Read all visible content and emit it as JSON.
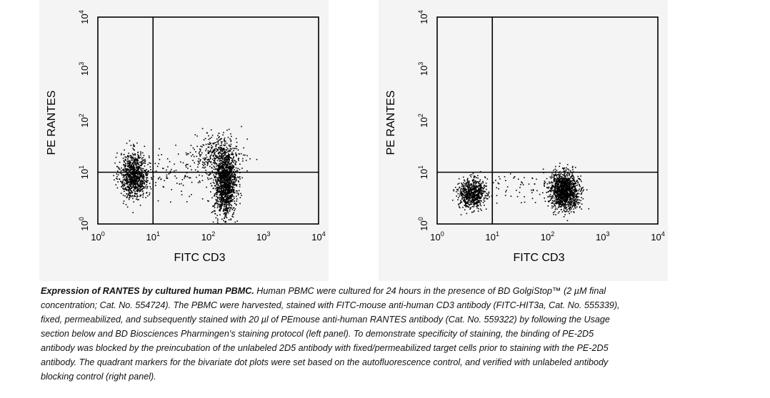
{
  "chart_data": [
    {
      "type": "scatter",
      "panel": "left",
      "xlabel": "FITC CD3",
      "ylabel": "PE RANTES",
      "xscale": "log",
      "yscale": "log",
      "xlim": [
        1,
        10000
      ],
      "ylim": [
        1,
        10000
      ],
      "xticks": [
        {
          "base": "10",
          "exp": "0"
        },
        {
          "base": "10",
          "exp": "1"
        },
        {
          "base": "10",
          "exp": "2"
        },
        {
          "base": "10",
          "exp": "3"
        },
        {
          "base": "10",
          "exp": "4"
        }
      ],
      "yticks": [
        {
          "base": "10",
          "exp": "0"
        },
        {
          "base": "10",
          "exp": "1"
        },
        {
          "base": "10",
          "exp": "2"
        },
        {
          "base": "10",
          "exp": "3"
        },
        {
          "base": "10",
          "exp": "4"
        }
      ],
      "quadrant_markers": {
        "x": 10,
        "y": 10
      },
      "point_color": "#000000",
      "populations": [
        {
          "x_center": 4.5,
          "y_center": 9,
          "x_spread_log": 0.13,
          "y_spread_log": 0.22,
          "count": 900
        },
        {
          "x_center": 200,
          "y_center": 6,
          "x_spread_log": 0.1,
          "y_spread_log": 0.32,
          "count": 1300
        },
        {
          "x_center": 150,
          "y_center": 22,
          "x_spread_log": 0.22,
          "y_spread_log": 0.2,
          "count": 350
        },
        {
          "x_center": 25,
          "y_center": 10,
          "x_spread_log": 0.45,
          "y_spread_log": 0.25,
          "count": 120
        }
      ]
    },
    {
      "type": "scatter",
      "panel": "right",
      "xlabel": "FITC CD3",
      "ylabel": "PE RANTES",
      "xscale": "log",
      "yscale": "log",
      "xlim": [
        1,
        10000
      ],
      "ylim": [
        1,
        10000
      ],
      "xticks": [
        {
          "base": "10",
          "exp": "0"
        },
        {
          "base": "10",
          "exp": "1"
        },
        {
          "base": "10",
          "exp": "2"
        },
        {
          "base": "10",
          "exp": "3"
        },
        {
          "base": "10",
          "exp": "4"
        }
      ],
      "yticks": [
        {
          "base": "10",
          "exp": "0"
        },
        {
          "base": "10",
          "exp": "1"
        },
        {
          "base": "10",
          "exp": "2"
        },
        {
          "base": "10",
          "exp": "3"
        },
        {
          "base": "10",
          "exp": "4"
        }
      ],
      "quadrant_markers": {
        "x": 10,
        "y": 10
      },
      "point_color": "#000000",
      "populations": [
        {
          "x_center": 4.2,
          "y_center": 4,
          "x_spread_log": 0.12,
          "y_spread_log": 0.14,
          "count": 650
        },
        {
          "x_center": 200,
          "y_center": 4.5,
          "x_spread_log": 0.13,
          "y_spread_log": 0.17,
          "count": 1300
        },
        {
          "x_center": 30,
          "y_center": 5,
          "x_spread_log": 0.4,
          "y_spread_log": 0.15,
          "count": 70
        }
      ]
    }
  ],
  "caption": {
    "title": "Expression of RANTES by cultured human PBMC.",
    "body": " Human PBMC were cultured for 24 hours in the presence of BD GolgiStop™ (2 µM final concentration; Cat. No. 554724). The PBMC were harvested, stained with FITC-mouse anti-human CD3 antibody (FITC-HIT3a, Cat. No. 555339), fixed, permeabilized, and subsequently stained with 20 µl of PEmouse anti-human RANTES antibody (Cat. No. 559322) by following the Usage section below and BD Biosciences Pharmingen's staining protocol (left panel). To demonstrate specificity of staining, the binding of PE-2D5 antibody was blocked by the preincubation of the unlabeled 2D5 antibody with fixed/permeabilized target cells prior to staining with the PE-2D5 antibody. The quadrant markers for the bivariate dot plots were set based on the autofluorescence control, and verified with unlabeled antibody blocking control (right panel)."
  }
}
